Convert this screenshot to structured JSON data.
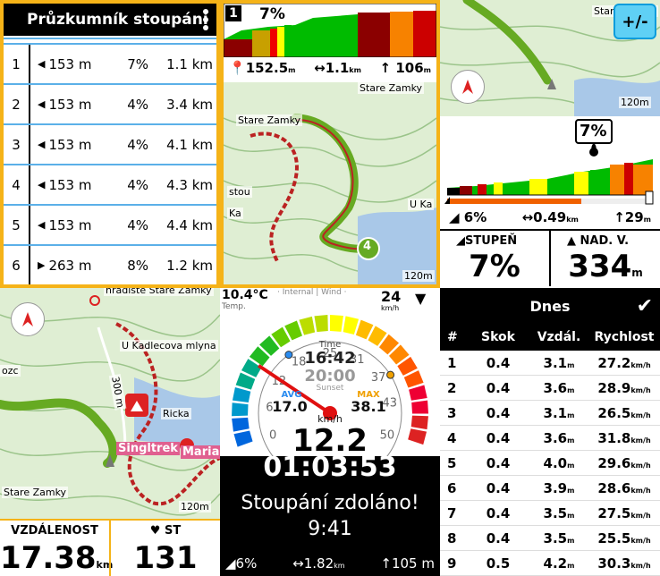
{
  "climb_list": {
    "title": "Průzkumník stoupání",
    "rows": [
      {
        "n": "1",
        "dist": "153 m",
        "grade": "7%",
        "len": "1.1 km",
        "dir": "left"
      },
      {
        "n": "2",
        "dist": "153 m",
        "grade": "4%",
        "len": "3.4 km",
        "dir": "left"
      },
      {
        "n": "3",
        "dist": "153 m",
        "grade": "4%",
        "len": "4.1 km",
        "dir": "left"
      },
      {
        "n": "4",
        "dist": "153 m",
        "grade": "4%",
        "len": "4.3 km",
        "dir": "left"
      },
      {
        "n": "5",
        "dist": "153 m",
        "grade": "4%",
        "len": "4.4 km",
        "dir": "left"
      },
      {
        "n": "6",
        "dist": "263 m",
        "grade": "8%",
        "len": "1.2 km",
        "dir": "right"
      }
    ]
  },
  "climb_map": {
    "badge": "1",
    "grade": "7%",
    "elev": "152.5",
    "elev_unit": "m",
    "dist": "1.1",
    "dist_unit": "km",
    "gain": "106",
    "gain_unit": "m",
    "label_top": "Stare Zamky",
    "label_mid": "Stare Zamky",
    "label_left": "stou",
    "label_right": "U Ka",
    "label_ka": "Ka",
    "waypoint": "4",
    "scale": "120m"
  },
  "topright_map": {
    "button_label": "+/-",
    "label": "Stare Zamky",
    "scale": "120m"
  },
  "elevation_panel": {
    "grade_marker": "7%",
    "stat_grade": "6%",
    "stat_dist": "0.49",
    "stat_dist_unit": "km",
    "stat_gain": "29",
    "stat_gain_unit": "m",
    "field1_label": "STUPEŇ",
    "field1_value": "7%",
    "field2_label": "NAD. V.",
    "field2_value": "334",
    "field2_unit": "m"
  },
  "nav_map": {
    "label_top": "hradiste Stare Zamky",
    "label_mlyn": "U Kadlecova mlyna",
    "label_ozc": "ozc",
    "label_300": "300 m",
    "label_ricka": "Ricka",
    "label_singltrek": "Singltrek",
    "label_maria": "Maria",
    "label_stare": "Stare Zamky",
    "scale": "120m",
    "field1_label": "VZDÁLENOST",
    "field1_value": "17.38",
    "field1_unit": "km",
    "field2_label": "ST",
    "field2_value": "131"
  },
  "speed_gauge": {
    "temp": "10.4°C",
    "temp_label": "Temp.",
    "sensors": "· Internal | Wind ·",
    "wind": "24",
    "wind_unit": "km/h",
    "ticks": [
      "0",
      "6",
      "12",
      "18",
      "25",
      "31",
      "37",
      "43",
      "50"
    ],
    "time_label": "Time",
    "time": "16:42",
    "sunset": "20:00",
    "sunset_label": "Sunset",
    "avg_label": "AVG",
    "avg": "17.0",
    "max_label": "MAX",
    "max": "38.1",
    "speed_unit": "km/h",
    "speed": "12.2",
    "elapsed": "01:03:53",
    "message": "Stoupání zdoláno!",
    "message_time": "9:41",
    "foot_grade": "6%",
    "foot_dist": "1.82",
    "foot_dist_unit": "km",
    "foot_gain": "105 m",
    "speed_value": 12.2,
    "avg_value": 17.0,
    "max_value": 38.1,
    "gauge_max": 50
  },
  "laps": {
    "title": "Dnes",
    "cols": [
      "#",
      "Skok",
      "Vzdál.",
      "Rychlost"
    ],
    "rows": [
      {
        "n": "1",
        "jump": "0.4",
        "dist": "3.1",
        "speed": "27.2"
      },
      {
        "n": "2",
        "jump": "0.4",
        "dist": "3.6",
        "speed": "28.9"
      },
      {
        "n": "3",
        "jump": "0.4",
        "dist": "3.1",
        "speed": "26.5"
      },
      {
        "n": "4",
        "jump": "0.4",
        "dist": "3.6",
        "speed": "31.8"
      },
      {
        "n": "5",
        "jump": "0.4",
        "dist": "4.0",
        "speed": "29.6"
      },
      {
        "n": "6",
        "jump": "0.4",
        "dist": "3.9",
        "speed": "28.6"
      },
      {
        "n": "7",
        "jump": "0.4",
        "dist": "3.5",
        "speed": "27.5"
      },
      {
        "n": "8",
        "jump": "0.4",
        "dist": "3.5",
        "speed": "25.5"
      },
      {
        "n": "9",
        "jump": "0.5",
        "dist": "4.2",
        "speed": "30.3"
      }
    ],
    "dist_unit": "m",
    "speed_unit": "km/h"
  }
}
